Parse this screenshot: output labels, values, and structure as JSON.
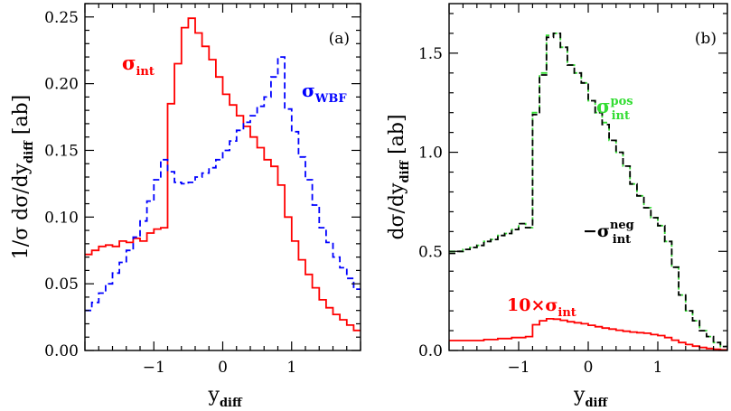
{
  "chart_data": [
    {
      "type": "line",
      "step": true,
      "panel_label": "(a)",
      "xlabel": {
        "main": "y",
        "sub": "diff"
      },
      "ylabel": {
        "main": "1/σ  dσ/dy",
        "sub": "diff",
        "unit": " [ab]"
      },
      "xlim": [
        -2.0,
        2.0
      ],
      "ylim": [
        0.0,
        0.26
      ],
      "xticks": [
        -1,
        0,
        1
      ],
      "xtick_labels": [
        "−1",
        "0",
        "1"
      ],
      "yticks": [
        0.0,
        0.05,
        0.1,
        0.15,
        0.2,
        0.25
      ],
      "ytick_labels": [
        "0.00",
        "0.05",
        "0.10",
        "0.15",
        "0.20",
        "0.25"
      ],
      "series": [
        {
          "name": {
            "main": "σ",
            "sub": "int"
          },
          "color": "#ff0000",
          "dash": "solid",
          "x": [
            -2.0,
            -1.9,
            -1.8,
            -1.7,
            -1.6,
            -1.5,
            -1.4,
            -1.3,
            -1.2,
            -1.1,
            -1.0,
            -0.9,
            -0.8,
            -0.7,
            -0.6,
            -0.5,
            -0.4,
            -0.3,
            -0.2,
            -0.1,
            0.0,
            0.1,
            0.2,
            0.3,
            0.4,
            0.5,
            0.6,
            0.7,
            0.8,
            0.9,
            1.0,
            1.1,
            1.2,
            1.3,
            1.4,
            1.5,
            1.6,
            1.7,
            1.8,
            1.9,
            2.0
          ],
          "values": [
            0.072,
            0.075,
            0.078,
            0.079,
            0.078,
            0.082,
            0.081,
            0.084,
            0.082,
            0.088,
            0.091,
            0.092,
            0.185,
            0.215,
            0.242,
            0.249,
            0.238,
            0.228,
            0.218,
            0.205,
            0.192,
            0.184,
            0.176,
            0.168,
            0.16,
            0.152,
            0.143,
            0.138,
            0.124,
            0.1,
            0.082,
            0.068,
            0.057,
            0.047,
            0.038,
            0.032,
            0.027,
            0.023,
            0.019,
            0.015,
            0.015
          ]
        },
        {
          "name": {
            "main": "σ",
            "sub": "WBF"
          },
          "color": "#0000ff",
          "dash": "dashed",
          "x": [
            -2.0,
            -1.9,
            -1.8,
            -1.7,
            -1.6,
            -1.5,
            -1.4,
            -1.3,
            -1.2,
            -1.1,
            -1.0,
            -0.9,
            -0.8,
            -0.7,
            -0.6,
            -0.5,
            -0.4,
            -0.3,
            -0.2,
            -0.1,
            0.0,
            0.1,
            0.2,
            0.3,
            0.4,
            0.5,
            0.6,
            0.7,
            0.8,
            0.9,
            1.0,
            1.1,
            1.2,
            1.3,
            1.4,
            1.5,
            1.6,
            1.7,
            1.8,
            1.9,
            2.0
          ],
          "values": [
            0.03,
            0.036,
            0.043,
            0.05,
            0.058,
            0.066,
            0.075,
            0.085,
            0.097,
            0.112,
            0.128,
            0.143,
            0.134,
            0.126,
            0.125,
            0.126,
            0.13,
            0.133,
            0.137,
            0.143,
            0.15,
            0.157,
            0.165,
            0.171,
            0.176,
            0.183,
            0.19,
            0.205,
            0.22,
            0.181,
            0.164,
            0.145,
            0.128,
            0.109,
            0.092,
            0.081,
            0.07,
            0.062,
            0.054,
            0.046,
            0.046
          ]
        }
      ]
    },
    {
      "type": "line",
      "step": true,
      "panel_label": "(b)",
      "xlabel": {
        "main": "y",
        "sub": "diff"
      },
      "ylabel": {
        "main": "dσ/dy",
        "sub": "diff",
        "unit": " [ab]"
      },
      "xlim": [
        -2.0,
        2.0
      ],
      "ylim": [
        0.0,
        1.75
      ],
      "xticks": [
        -1,
        0,
        1
      ],
      "xtick_labels": [
        "−1",
        "0",
        "1"
      ],
      "yticks": [
        0.0,
        0.5,
        1.0,
        1.5
      ],
      "ytick_labels": [
        "0.0",
        "0.5",
        "1.0",
        "1.5"
      ],
      "series": [
        {
          "name": {
            "main": "σ",
            "sub": "int",
            "sup": "pos"
          },
          "color": "#33dd33",
          "dash": "dashed",
          "x": [
            -2.0,
            -1.9,
            -1.8,
            -1.7,
            -1.6,
            -1.5,
            -1.4,
            -1.3,
            -1.2,
            -1.1,
            -1.0,
            -0.9,
            -0.8,
            -0.7,
            -0.6,
            -0.5,
            -0.4,
            -0.3,
            -0.2,
            -0.1,
            0.0,
            0.1,
            0.2,
            0.3,
            0.4,
            0.5,
            0.6,
            0.7,
            0.8,
            0.9,
            1.0,
            1.1,
            1.2,
            1.3,
            1.4,
            1.5,
            1.6,
            1.7,
            1.8,
            1.9,
            2.0
          ],
          "values": [
            0.5,
            0.5,
            0.51,
            0.52,
            0.53,
            0.55,
            0.56,
            0.58,
            0.59,
            0.61,
            0.64,
            0.62,
            1.2,
            1.4,
            1.59,
            1.6,
            1.53,
            1.44,
            1.4,
            1.35,
            1.26,
            1.2,
            1.15,
            1.06,
            1.0,
            0.93,
            0.84,
            0.78,
            0.72,
            0.67,
            0.63,
            0.55,
            0.42,
            0.28,
            0.2,
            0.15,
            0.1,
            0.07,
            0.04,
            0.02,
            0.02
          ]
        },
        {
          "name": {
            "main": "−σ",
            "sub": "int",
            "sup": "neg"
          },
          "color": "#000000",
          "dash": "dashed",
          "x": [
            -2.0,
            -1.9,
            -1.8,
            -1.7,
            -1.6,
            -1.5,
            -1.4,
            -1.3,
            -1.2,
            -1.1,
            -1.0,
            -0.9,
            -0.8,
            -0.7,
            -0.6,
            -0.5,
            -0.4,
            -0.3,
            -0.2,
            -0.1,
            0.0,
            0.1,
            0.2,
            0.3,
            0.4,
            0.5,
            0.6,
            0.7,
            0.8,
            0.9,
            1.0,
            1.1,
            1.2,
            1.3,
            1.4,
            1.5,
            1.6,
            1.7,
            1.8,
            1.9,
            2.0
          ],
          "values": [
            0.49,
            0.5,
            0.51,
            0.52,
            0.53,
            0.55,
            0.56,
            0.58,
            0.59,
            0.61,
            0.64,
            0.62,
            1.19,
            1.39,
            1.58,
            1.6,
            1.53,
            1.44,
            1.4,
            1.35,
            1.26,
            1.2,
            1.14,
            1.06,
            1.0,
            0.93,
            0.84,
            0.78,
            0.72,
            0.67,
            0.63,
            0.55,
            0.42,
            0.28,
            0.2,
            0.15,
            0.1,
            0.07,
            0.04,
            0.02,
            0.02
          ]
        },
        {
          "name": {
            "main": "10×σ",
            "sub": "int"
          },
          "color": "#ff0000",
          "dash": "solid",
          "x": [
            -2.0,
            -1.9,
            -1.8,
            -1.7,
            -1.6,
            -1.5,
            -1.4,
            -1.3,
            -1.2,
            -1.1,
            -1.0,
            -0.9,
            -0.8,
            -0.7,
            -0.6,
            -0.5,
            -0.4,
            -0.3,
            -0.2,
            -0.1,
            0.0,
            0.1,
            0.2,
            0.3,
            0.4,
            0.5,
            0.6,
            0.7,
            0.8,
            0.9,
            1.0,
            1.1,
            1.2,
            1.3,
            1.4,
            1.5,
            1.6,
            1.7,
            1.8,
            1.9,
            2.0
          ],
          "values": [
            0.05,
            0.05,
            0.05,
            0.05,
            0.05,
            0.055,
            0.055,
            0.06,
            0.06,
            0.065,
            0.065,
            0.07,
            0.13,
            0.15,
            0.16,
            0.158,
            0.152,
            0.145,
            0.14,
            0.135,
            0.127,
            0.12,
            0.113,
            0.108,
            0.102,
            0.097,
            0.093,
            0.09,
            0.087,
            0.08,
            0.075,
            0.065,
            0.052,
            0.04,
            0.03,
            0.022,
            0.015,
            0.01,
            0.006,
            0.003,
            0.003
          ]
        }
      ]
    }
  ]
}
